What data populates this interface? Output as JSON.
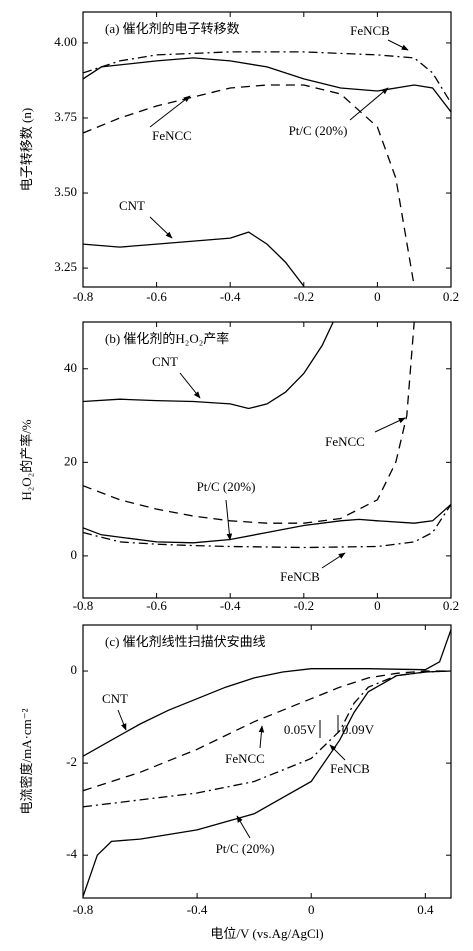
{
  "chart_data": [
    {
      "type": "line",
      "title": "(a) 催化剂的电子转移数",
      "y_label": "电子转移数 (n)",
      "xlim": [
        -0.8,
        0.2
      ],
      "xticks": [
        -0.8,
        -0.6,
        -0.4,
        -0.2,
        0,
        0.2
      ],
      "ylim": [
        3.187,
        4.103
      ],
      "yticks": [
        {
          "value": 3.25,
          "label": "3.25"
        },
        {
          "value": 3.5,
          "label": "3.50"
        },
        {
          "value": 3.75,
          "label": "3.75"
        },
        {
          "value": 4,
          "label": "4.00"
        }
      ],
      "series": [
        {
          "name": "CNT",
          "color": "#000000",
          "linestyle": "solid",
          "x": [
            -0.8,
            -0.7,
            -0.6,
            -0.5,
            -0.4,
            -0.35,
            -0.3,
            -0.25,
            -0.2
          ],
          "values": [
            3.33,
            3.32,
            3.33,
            3.34,
            3.35,
            3.37,
            3.33,
            3.27,
            3.19
          ]
        },
        {
          "name": "FeNCB",
          "color": "#000000",
          "linestyle": "dashdot",
          "x": [
            -0.8,
            -0.7,
            -0.6,
            -0.4,
            -0.2,
            0,
            0.1,
            0.15,
            0.2
          ],
          "values": [
            3.9,
            3.94,
            3.96,
            3.97,
            3.97,
            3.96,
            3.95,
            3.9,
            3.8
          ]
        },
        {
          "name": "FeNCC",
          "color": "#000000",
          "linestyle": "dashed",
          "x": [
            -0.8,
            -0.7,
            -0.6,
            -0.5,
            -0.4,
            -0.3,
            -0.2,
            -0.1,
            0,
            0.05,
            0.1
          ],
          "values": [
            3.7,
            3.75,
            3.79,
            3.82,
            3.85,
            3.86,
            3.86,
            3.83,
            3.72,
            3.55,
            3.19
          ]
        },
        {
          "name": "Pt/C (20%)",
          "color": "#000000",
          "linestyle": "solid",
          "x": [
            -0.8,
            -0.75,
            -0.6,
            -0.5,
            -0.4,
            -0.3,
            -0.2,
            -0.1,
            0,
            0.1,
            0.15,
            0.2
          ],
          "values": [
            3.88,
            3.92,
            3.94,
            3.95,
            3.94,
            3.92,
            3.88,
            3.85,
            3.84,
            3.86,
            3.85,
            3.77
          ]
        }
      ]
    },
    {
      "type": "line",
      "title": "(b) 催化剂的H₂O₂产率",
      "y_label": "H₂O₂的产率/%",
      "xlim": [
        -0.8,
        0.2
      ],
      "xticks": [
        -0.8,
        -0.6,
        -0.4,
        -0.2,
        0,
        0.2
      ],
      "ylim": [
        -9,
        50
      ],
      "yticks": [
        0,
        20,
        40
      ],
      "series": [
        {
          "name": "CNT",
          "color": "#000000",
          "linestyle": "solid",
          "x": [
            -0.8,
            -0.7,
            -0.6,
            -0.5,
            -0.4,
            -0.35,
            -0.3,
            -0.25,
            -0.2,
            -0.15,
            -0.12
          ],
          "values": [
            33,
            33.5,
            33.2,
            33,
            32.5,
            31.5,
            32.5,
            35,
            39,
            45,
            50
          ]
        },
        {
          "name": "FeNCB",
          "color": "#000000",
          "linestyle": "dashdot",
          "x": [
            -0.8,
            -0.7,
            -0.6,
            -0.5,
            -0.4,
            -0.2,
            0,
            0.1,
            0.15,
            0.2
          ],
          "values": [
            5,
            3,
            2.5,
            2.2,
            2,
            1.8,
            2,
            3,
            5,
            11
          ]
        },
        {
          "name": "FeNCC",
          "color": "#000000",
          "linestyle": "dashed",
          "x": [
            -0.8,
            -0.7,
            -0.6,
            -0.5,
            -0.4,
            -0.3,
            -0.2,
            -0.1,
            0,
            0.05,
            0.08,
            0.1
          ],
          "values": [
            15,
            12,
            10,
            8.5,
            7.5,
            7,
            7,
            8,
            12,
            20,
            30,
            50
          ]
        },
        {
          "name": "Pt/C (20%)",
          "color": "#000000",
          "linestyle": "solid",
          "x": [
            -0.8,
            -0.75,
            -0.6,
            -0.5,
            -0.4,
            -0.3,
            -0.2,
            -0.1,
            -0.05,
            0,
            0.1,
            0.15,
            0.2
          ],
          "values": [
            6,
            4.5,
            3,
            2.8,
            3.5,
            5,
            6.5,
            7.5,
            7.8,
            7.5,
            7,
            7.5,
            11
          ]
        }
      ]
    },
    {
      "type": "line",
      "title": "(c) 催化剂线性扫描伏安曲线",
      "y_label": "电流密度/mA·cm⁻²",
      "x_label": "电位/V (vs.Ag/AgCl)",
      "xlim": [
        -0.8,
        0.49
      ],
      "xticks": [
        -0.8,
        -0.4,
        0,
        0.4
      ],
      "ylim": [
        -4.93,
        1.0
      ],
      "yticks": [
        -4,
        -2,
        0
      ],
      "annotations": [
        "0.05V",
        "0.09V"
      ],
      "series": [
        {
          "name": "CNT",
          "color": "#000000",
          "linestyle": "solid",
          "x": [
            -0.8,
            -0.7,
            -0.6,
            -0.5,
            -0.4,
            -0.3,
            -0.2,
            -0.1,
            0,
            0.2,
            0.4,
            0.45,
            0.49
          ],
          "values": [
            -1.85,
            -1.5,
            -1.15,
            -0.85,
            -0.6,
            -0.35,
            -0.15,
            -0.02,
            0.05,
            0.05,
            0.03,
            0.2,
            0.9
          ]
        },
        {
          "name": "FeNCB",
          "color": "#000000",
          "linestyle": "dashdot",
          "x": [
            -0.8,
            -0.6,
            -0.4,
            -0.2,
            0,
            0.1,
            0.15,
            0.2,
            0.3,
            0.4,
            0.49
          ],
          "values": [
            -2.95,
            -2.8,
            -2.65,
            -2.4,
            -1.9,
            -1.3,
            -0.7,
            -0.35,
            -0.1,
            -0.02,
            0
          ]
        },
        {
          "name": "FeNCC",
          "color": "#000000",
          "linestyle": "dashed",
          "x": [
            -0.8,
            -0.6,
            -0.4,
            -0.2,
            0,
            0.1,
            0.2,
            0.3,
            0.4,
            0.49
          ],
          "values": [
            -2.6,
            -2.2,
            -1.7,
            -1.1,
            -0.6,
            -0.35,
            -0.15,
            -0.05,
            0,
            0
          ]
        },
        {
          "name": "Pt/C (20%)",
          "color": "#000000",
          "linestyle": "solid",
          "x": [
            -0.8,
            -0.75,
            -0.7,
            -0.6,
            -0.4,
            -0.2,
            0,
            0.1,
            0.15,
            0.2,
            0.3,
            0.4,
            0.49
          ],
          "values": [
            -4.9,
            -4.0,
            -3.7,
            -3.65,
            -3.45,
            -3.1,
            -2.4,
            -1.5,
            -0.9,
            -0.45,
            -0.1,
            -0.02,
            0
          ]
        }
      ]
    }
  ]
}
